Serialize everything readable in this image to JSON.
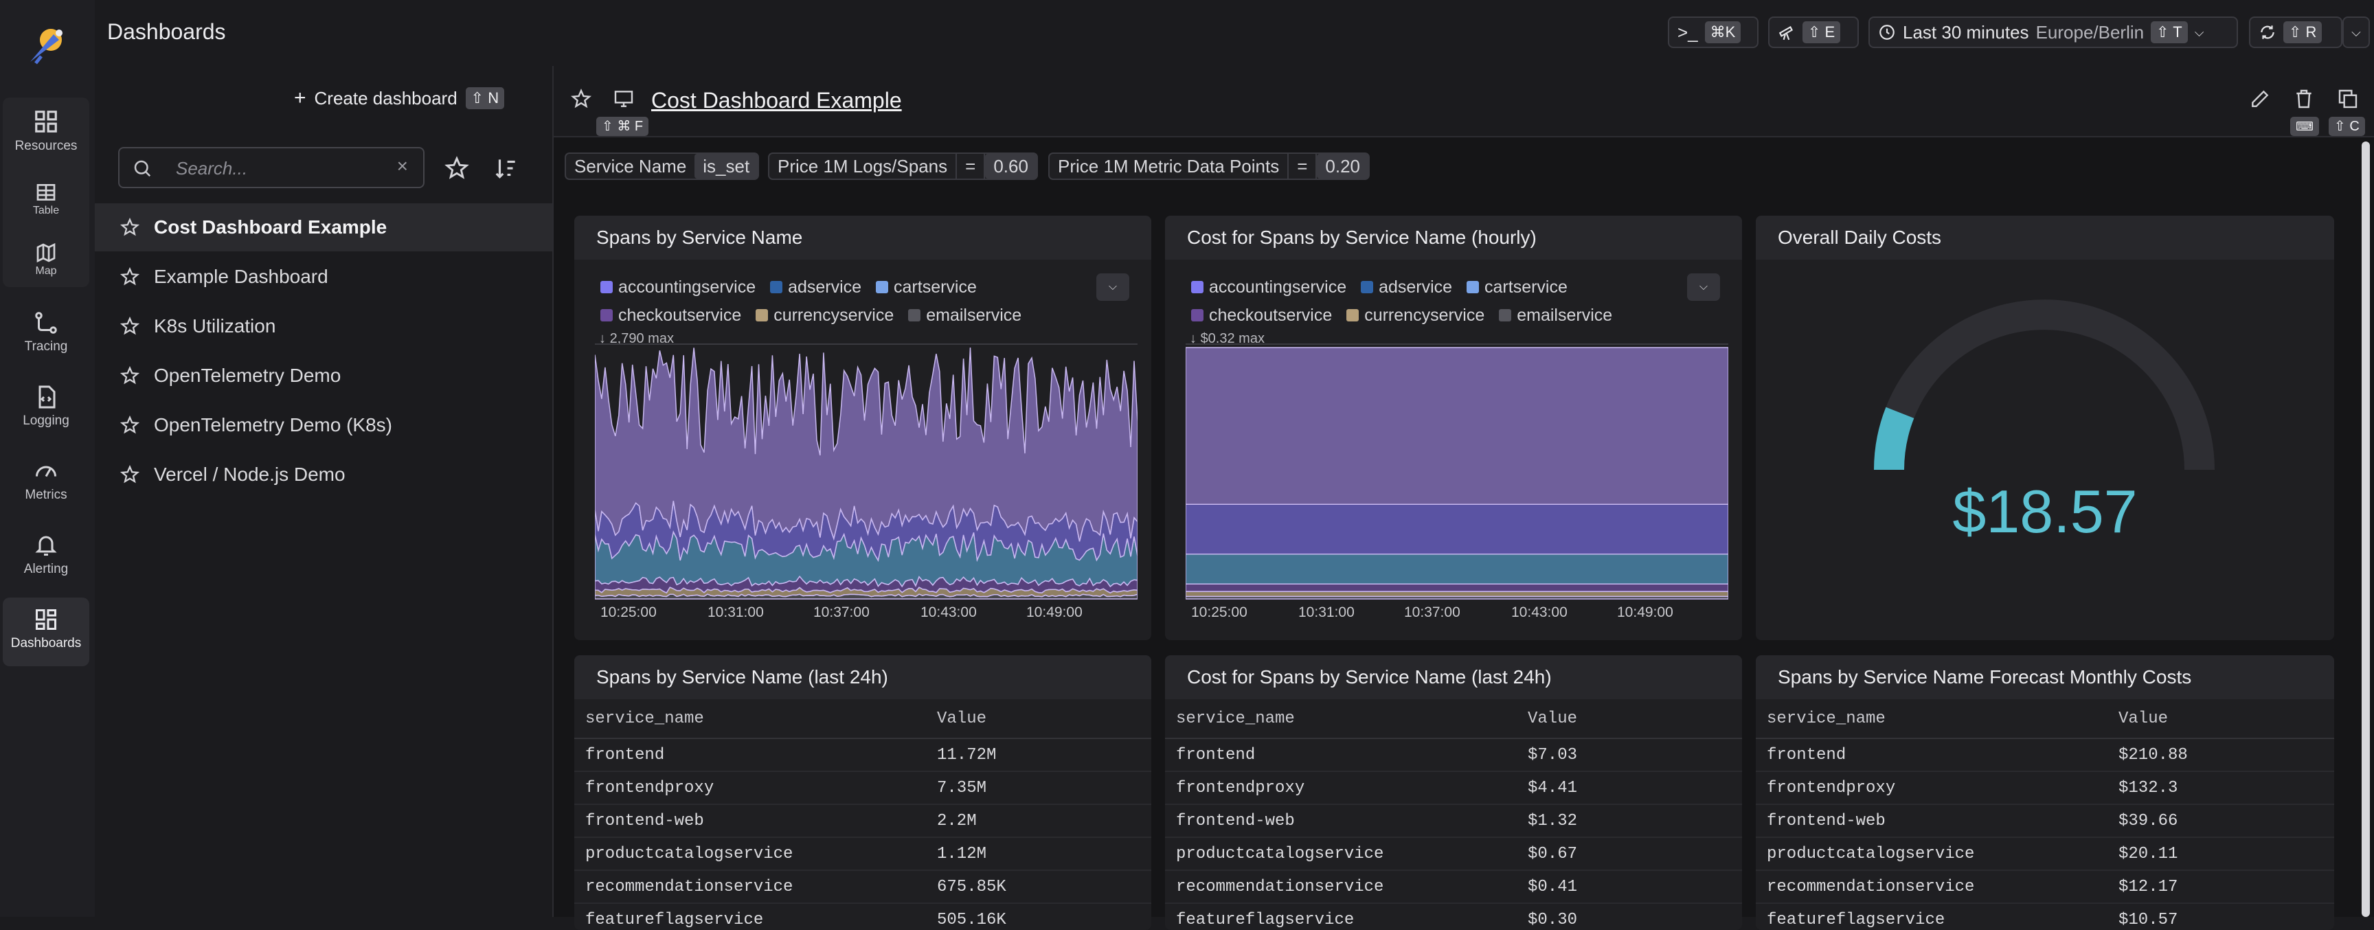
{
  "header": {
    "title": "Dashboards",
    "shell_shortcut": "⌘K",
    "explorer_shortcut": "⇧ E",
    "time_range": "Last 30 minutes",
    "timezone": "Europe/Berlin",
    "time_shortcut": "⇧ T",
    "refresh_shortcut": "⇧ R"
  },
  "rail": {
    "items": [
      {
        "label": "Resources",
        "icon": "resources-icon"
      },
      {
        "label": "Table",
        "icon": "table-icon"
      },
      {
        "label": "Map",
        "icon": "map-icon"
      },
      {
        "label": "Tracing",
        "icon": "tracing-icon"
      },
      {
        "label": "Logging",
        "icon": "logging-icon"
      },
      {
        "label": "Metrics",
        "icon": "metrics-icon"
      },
      {
        "label": "Alerting",
        "icon": "alerting-icon"
      },
      {
        "label": "Dashboards",
        "icon": "dashboards-icon"
      }
    ]
  },
  "list": {
    "create_label": "Create dashboard",
    "create_shortcut": "⇧ N",
    "search_placeholder": "Search...",
    "dashboards": [
      "Cost Dashboard Example",
      "Example Dashboard",
      "K8s Utilization",
      "OpenTelemetry Demo",
      "OpenTelemetry Demo (K8s)",
      "Vercel / Node.js Demo"
    ]
  },
  "dashboard": {
    "title": "Cost Dashboard Example",
    "fav_shortcut": "⇧ ⌘ F",
    "copy_shortcut": "⇧ C",
    "filters": [
      {
        "name": "Service Name",
        "op": "",
        "value": "is_set"
      },
      {
        "name": "Price 1M Logs/Spans",
        "op": "=",
        "value": "0.60"
      },
      {
        "name": "Price 1M Metric Data Points",
        "op": "=",
        "value": "0.20"
      }
    ]
  },
  "panels": {
    "spans": {
      "title": "Spans by Service Name",
      "max_label": "2,790 max",
      "xticks": [
        "10:25:00",
        "10:31:00",
        "10:37:00",
        "10:43:00",
        "10:49:00"
      ]
    },
    "cost": {
      "title": "Cost for Spans by Service Name (hourly)",
      "max_label": "$0.32 max",
      "xticks": [
        "10:25:00",
        "10:31:00",
        "10:37:00",
        "10:43:00",
        "10:49:00"
      ]
    },
    "daily": {
      "title": "Overall Daily Costs",
      "value": "$18.57"
    },
    "legend": [
      {
        "name": "accountingservice",
        "color": "#7f79f0"
      },
      {
        "name": "adservice",
        "color": "#2f63a7"
      },
      {
        "name": "cartservice",
        "color": "#7aa4e8"
      },
      {
        "name": "checkoutservice",
        "color": "#6b4c9b"
      },
      {
        "name": "currencyservice",
        "color": "#b6a07a"
      },
      {
        "name": "emailservice",
        "color": "#55555c"
      }
    ],
    "tables": [
      {
        "title": "Spans by Service Name (last 24h)",
        "headers": [
          "service_name",
          "Value"
        ],
        "rows": [
          [
            "frontend",
            "11.72M"
          ],
          [
            "frontendproxy",
            "7.35M"
          ],
          [
            "frontend-web",
            "2.2M"
          ],
          [
            "productcatalogservice",
            "1.12M"
          ],
          [
            "recommendationservice",
            "675.85K"
          ],
          [
            "featureflagservice",
            "505.16K"
          ]
        ]
      },
      {
        "title": "Cost for Spans by Service Name (last 24h)",
        "headers": [
          "service_name",
          "Value"
        ],
        "rows": [
          [
            "frontend",
            "$7.03"
          ],
          [
            "frontendproxy",
            "$4.41"
          ],
          [
            "frontend-web",
            "$1.32"
          ],
          [
            "productcatalogservice",
            "$0.67"
          ],
          [
            "recommendationservice",
            "$0.41"
          ],
          [
            "featureflagservice",
            "$0.30"
          ]
        ]
      },
      {
        "title": "Spans by Service Name Forecast Monthly Costs",
        "headers": [
          "service_name",
          "Value"
        ],
        "rows": [
          [
            "frontend",
            "$210.88"
          ],
          [
            "frontendproxy",
            "$132.3"
          ],
          [
            "frontend-web",
            "$39.66"
          ],
          [
            "productcatalogservice",
            "$20.11"
          ],
          [
            "recommendationservice",
            "$12.17"
          ],
          [
            "featureflagservice",
            "$10.57"
          ]
        ]
      }
    ]
  },
  "chart_data": [
    {
      "type": "area",
      "title": "Spans by Service Name",
      "x_range": [
        "10:22:00",
        "10:52:00"
      ],
      "xticks": [
        "10:25:00",
        "10:31:00",
        "10:37:00",
        "10:43:00",
        "10:49:00"
      ],
      "ymax": 2790,
      "series": [
        {
          "name": "accountingservice",
          "approx_level": 0.7
        },
        {
          "name": "adservice",
          "approx_level": 0.15
        },
        {
          "name": "cartservice",
          "approx_level": 0.2
        },
        {
          "name": "checkoutservice",
          "approx_level": 0.05
        },
        {
          "name": "currencyservice",
          "approx_level": 0.03
        },
        {
          "name": "emailservice",
          "approx_level": 0.02
        }
      ]
    },
    {
      "type": "area",
      "title": "Cost for Spans by Service Name (hourly)",
      "x_range": [
        "10:22:00",
        "10:52:00"
      ],
      "xticks": [
        "10:25:00",
        "10:31:00",
        "10:37:00",
        "10:43:00",
        "10:49:00"
      ],
      "ymax": 0.32,
      "series": [
        {
          "name": "accountingservice",
          "approx_level": 0.63
        },
        {
          "name": "adservice",
          "approx_level": 0.2
        },
        {
          "name": "cartservice",
          "approx_level": 0.12
        },
        {
          "name": "checkoutservice",
          "approx_level": 0.03
        },
        {
          "name": "currencyservice",
          "approx_level": 0.02
        },
        {
          "name": "emailservice",
          "approx_level": 0.01
        }
      ]
    },
    {
      "type": "gauge",
      "title": "Overall Daily Costs",
      "value": 18.57,
      "fill_fraction": 0.12
    }
  ]
}
